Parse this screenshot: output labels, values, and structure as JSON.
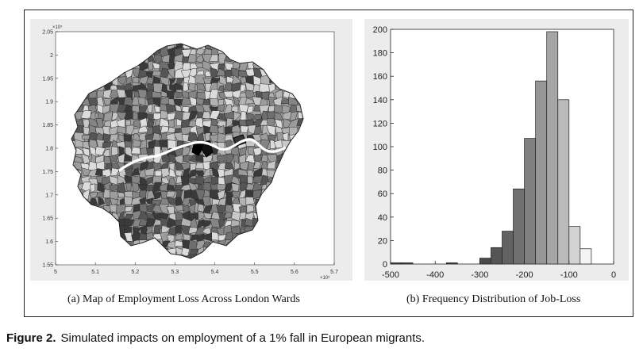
{
  "map": {
    "subcaption": "(a) Map of Employment Loss Across London Wards",
    "x_ticks": [
      "5",
      "5.1",
      "5.2",
      "5.3",
      "5.4",
      "5.5",
      "5.6",
      "5.7"
    ],
    "y_ticks": [
      "2.05",
      "2",
      "1.95",
      "1.9",
      "1.85",
      "1.8",
      "1.75",
      "1.7",
      "1.65",
      "1.6",
      "1.55"
    ],
    "x_exponent": "×10⁵",
    "y_exponent": "×10⁵",
    "river_color": "#ffffff",
    "colors": [
      "#3a3a3a",
      "#555555",
      "#6e6e6e",
      "#858585",
      "#9c9c9c",
      "#b2b2b2",
      "#c8c8c8",
      "#dcdcdc"
    ]
  },
  "hist": {
    "subcaption": "(b) Frequency Distribution of Job-Loss"
  },
  "caption": {
    "label": "Figure 2.",
    "text": "Simulated impacts on employment of a 1% fall in European migrants."
  },
  "chart_data": {
    "type": "bar",
    "title": "",
    "xlabel": "",
    "ylabel": "",
    "xlim": [
      -500,
      0
    ],
    "ylim": [
      0,
      200
    ],
    "x_ticks": [
      -500,
      -400,
      -300,
      -200,
      -100,
      0
    ],
    "y_ticks": [
      0,
      20,
      40,
      60,
      80,
      100,
      120,
      140,
      160,
      180,
      200
    ],
    "bins": [
      {
        "x0": -500,
        "x1": -475,
        "count": 1,
        "color": "#3d3d3d"
      },
      {
        "x0": -475,
        "x1": -450,
        "count": 1,
        "color": "#3d3d3d"
      },
      {
        "x0": -375,
        "x1": -350,
        "count": 1,
        "color": "#3d3d3d"
      },
      {
        "x0": -300,
        "x1": -275,
        "count": 5,
        "color": "#4a4a4a"
      },
      {
        "x0": -275,
        "x1": -250,
        "count": 14,
        "color": "#555555"
      },
      {
        "x0": -250,
        "x1": -225,
        "count": 28,
        "color": "#626262"
      },
      {
        "x0": -225,
        "x1": -200,
        "count": 64,
        "color": "#707070"
      },
      {
        "x0": -200,
        "x1": -175,
        "count": 107,
        "color": "#808080"
      },
      {
        "x0": -175,
        "x1": -150,
        "count": 156,
        "color": "#969696"
      },
      {
        "x0": -150,
        "x1": -125,
        "count": 198,
        "color": "#a6a6a6"
      },
      {
        "x0": -125,
        "x1": -100,
        "count": 140,
        "color": "#bababa"
      },
      {
        "x0": -100,
        "x1": -75,
        "count": 32,
        "color": "#d2d2d2"
      },
      {
        "x0": -75,
        "x1": -50,
        "count": 13,
        "color": "#f4f4f4"
      }
    ]
  }
}
